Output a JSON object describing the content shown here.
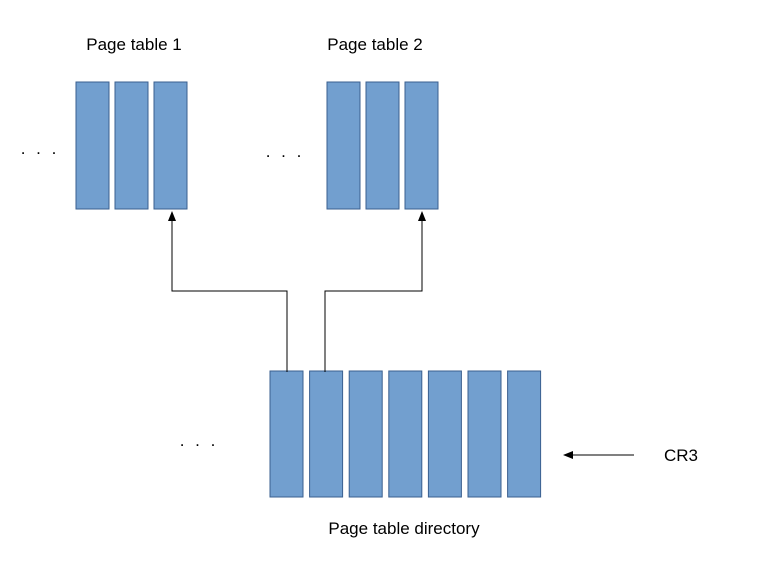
{
  "colors": {
    "entry_fill": "#729fcf",
    "entry_stroke": "#3a5f8f",
    "line": "#000000"
  },
  "page_table_1": {
    "title": "Page table 1",
    "ellipsis": ". . .",
    "entry_count": 3
  },
  "page_table_2": {
    "title": "Page table 2",
    "ellipsis": ". . .",
    "entry_count": 3
  },
  "directory": {
    "title": "Page table directory",
    "ellipsis": ". . .",
    "entry_count": 7
  },
  "register": {
    "label": "CR3"
  }
}
